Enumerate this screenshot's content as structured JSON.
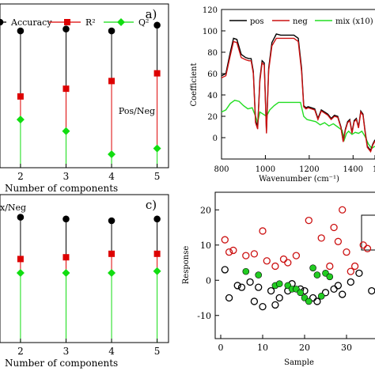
{
  "chart_data": [
    {
      "panel": "a)",
      "type": "scatter",
      "x": [
        2,
        3,
        4,
        5
      ],
      "xlabel": "Number of components",
      "annotation": "Pos/Neg",
      "series": [
        {
          "name": "Accuracy",
          "color": "#000000",
          "marker": "circle",
          "values": [
            0.86,
            0.87,
            0.86,
            0.89
          ]
        },
        {
          "name": "R²",
          "color": "#dd0000",
          "marker": "square",
          "values": [
            0.52,
            0.56,
            0.6,
            0.64
          ]
        },
        {
          "name": "Q²",
          "color": "#11dd11",
          "marker": "diamond",
          "values": [
            0.4,
            0.34,
            0.22,
            0.25
          ]
        }
      ],
      "x_ticks": [
        "2",
        "3",
        "4",
        "5"
      ]
    },
    {
      "panel": "",
      "type": "line",
      "xlabel": "Wavenumber (cm⁻¹)",
      "ylabel": "Coefficient",
      "xlim": [
        800,
        1500
      ],
      "ylim": [
        -20,
        120
      ],
      "x_ticks": [
        "800",
        "1000",
        "1200",
        "1400",
        "1"
      ],
      "y_ticks": [
        "0",
        "20",
        "40",
        "60",
        "80",
        "100",
        "120"
      ],
      "series": [
        {
          "name": "pos",
          "color": "#000000",
          "x": [
            800,
            820,
            840,
            855,
            870,
            890,
            910,
            925,
            935,
            945,
            955,
            965,
            975,
            985,
            995,
            1005,
            1015,
            1030,
            1050,
            1070,
            1090,
            1110,
            1130,
            1150,
            1165,
            1175,
            1185,
            1195,
            1210,
            1225,
            1240,
            1255,
            1270,
            1285,
            1300,
            1315,
            1330,
            1345,
            1355,
            1365,
            1375,
            1385,
            1395,
            1405,
            1415,
            1425,
            1435,
            1445,
            1455,
            1465,
            1480,
            1490,
            1500
          ],
          "values": [
            58,
            60,
            80,
            93,
            92,
            78,
            75,
            74,
            74,
            62,
            16,
            10,
            55,
            72,
            70,
            6,
            65,
            89,
            97,
            96,
            96,
            96,
            96,
            93,
            65,
            30,
            28,
            29,
            28,
            27,
            18,
            26,
            24,
            22,
            18,
            21,
            20,
            10,
            -3,
            8,
            15,
            17,
            5,
            16,
            18,
            10,
            25,
            22,
            6,
            -8,
            -12,
            -6,
            -2
          ]
        },
        {
          "name": "neg",
          "color": "#cc1111",
          "x": [
            800,
            820,
            840,
            855,
            870,
            890,
            910,
            925,
            935,
            945,
            955,
            965,
            975,
            985,
            995,
            1005,
            1015,
            1030,
            1050,
            1070,
            1090,
            1110,
            1130,
            1150,
            1165,
            1175,
            1185,
            1195,
            1210,
            1225,
            1240,
            1255,
            1270,
            1285,
            1300,
            1315,
            1330,
            1345,
            1355,
            1365,
            1375,
            1385,
            1395,
            1405,
            1415,
            1425,
            1435,
            1445,
            1455,
            1465,
            1480,
            1490,
            1500
          ],
          "values": [
            56,
            58,
            77,
            90,
            89,
            75,
            73,
            72,
            72,
            60,
            14,
            8,
            53,
            70,
            68,
            4,
            63,
            86,
            93,
            93,
            93,
            93,
            93,
            90,
            62,
            29,
            27,
            28,
            27,
            26,
            17,
            25,
            23,
            21,
            17,
            20,
            19,
            9,
            -4,
            7,
            14,
            16,
            4,
            15,
            17,
            9,
            24,
            21,
            5,
            -9,
            -13,
            -7,
            -3
          ]
        },
        {
          "name": "mix (x10)",
          "color": "#22dd22",
          "x": [
            800,
            820,
            840,
            860,
            880,
            900,
            920,
            940,
            955,
            965,
            975,
            990,
            1005,
            1020,
            1040,
            1060,
            1080,
            1100,
            1120,
            1140,
            1160,
            1175,
            1190,
            1210,
            1230,
            1250,
            1270,
            1290,
            1310,
            1330,
            1350,
            1360,
            1370,
            1380,
            1395,
            1410,
            1425,
            1440,
            1455,
            1470,
            1485,
            1500
          ],
          "values": [
            24,
            26,
            32,
            35,
            34,
            30,
            27,
            28,
            20,
            14,
            24,
            22,
            20,
            26,
            30,
            33,
            33,
            33,
            33,
            33,
            33,
            20,
            17,
            16,
            15,
            12,
            14,
            11,
            13,
            10,
            7,
            -2,
            4,
            6,
            3,
            5,
            4,
            6,
            1,
            -6,
            -10,
            -8
          ]
        }
      ]
    },
    {
      "panel": "c)",
      "type": "scatter",
      "x": [
        2,
        3,
        4,
        5
      ],
      "xlabel": "Number of components",
      "annotation": "x/Neg",
      "series": [
        {
          "name": "Accuracy",
          "color": "#000000",
          "marker": "circle",
          "values": [
            0.87,
            0.86,
            0.85,
            0.86
          ]
        },
        {
          "name": "R²",
          "color": "#dd0000",
          "marker": "square",
          "values": [
            0.63,
            0.64,
            0.66,
            0.66
          ]
        },
        {
          "name": "Q²",
          "color": "#11dd11",
          "marker": "diamond",
          "values": [
            0.55,
            0.55,
            0.55,
            0.56
          ]
        }
      ],
      "x_ticks": [
        "2",
        "3",
        "4",
        "5"
      ]
    },
    {
      "panel": "",
      "type": "scatter",
      "xlabel": "Sample",
      "ylabel": "Response",
      "xlim": [
        0,
        40
      ],
      "ylim": [
        -15,
        25
      ],
      "x_ticks": [
        "0",
        "10",
        "20",
        "30"
      ],
      "y_ticks": [
        "-10",
        "0",
        "10",
        "20"
      ],
      "series": [
        {
          "color": "#cc1111",
          "marker": "open-circle",
          "points": [
            [
              1,
              11.5
            ],
            [
              2,
              8
            ],
            [
              3,
              8.5
            ],
            [
              6,
              7
            ],
            [
              8,
              7.5
            ],
            [
              10,
              14
            ],
            [
              11,
              5.5
            ],
            [
              13,
              4
            ],
            [
              15,
              6
            ],
            [
              16,
              5
            ],
            [
              18,
              7
            ],
            [
              21,
              17
            ],
            [
              24,
              12
            ],
            [
              26,
              4
            ],
            [
              27,
              15
            ],
            [
              28,
              11
            ],
            [
              29,
              20
            ],
            [
              30,
              8
            ],
            [
              31,
              2.5
            ],
            [
              32,
              4
            ],
            [
              34,
              10
            ],
            [
              35,
              9
            ]
          ]
        },
        {
          "color": "#000000",
          "marker": "open-circle",
          "points": [
            [
              1,
              3
            ],
            [
              2,
              -5
            ],
            [
              4,
              -1.5
            ],
            [
              5,
              -2
            ],
            [
              7,
              -0.5
            ],
            [
              8,
              -6
            ],
            [
              9,
              -2
            ],
            [
              10,
              -7.5
            ],
            [
              12,
              -3
            ],
            [
              13,
              -7
            ],
            [
              14,
              -5
            ],
            [
              16,
              -3
            ],
            [
              17,
              -1
            ],
            [
              19,
              -2.5
            ],
            [
              20,
              -3
            ],
            [
              22,
              -5
            ],
            [
              23,
              -6
            ],
            [
              25,
              -3.5
            ],
            [
              27,
              -2.5
            ],
            [
              28,
              -1.5
            ],
            [
              29,
              -4
            ],
            [
              31,
              -0.5
            ],
            [
              33,
              2
            ],
            [
              36,
              -3
            ],
            [
              38,
              -11.5
            ],
            [
              39,
              -10.5
            ]
          ]
        },
        {
          "color": "#22cc22",
          "marker": "filled-circle",
          "points": [
            [
              6,
              2.5
            ],
            [
              9,
              1.5
            ],
            [
              13,
              -1.5
            ],
            [
              14,
              -1
            ],
            [
              16,
              -1.5
            ],
            [
              17,
              -2.5
            ],
            [
              18,
              -2.5
            ],
            [
              19,
              -3.5
            ],
            [
              20,
              -5
            ],
            [
              21,
              -6
            ],
            [
              22,
              3.5
            ],
            [
              23,
              1.5
            ],
            [
              24,
              -4.5
            ],
            [
              25,
              2
            ],
            [
              26,
              1
            ]
          ]
        }
      ]
    }
  ]
}
